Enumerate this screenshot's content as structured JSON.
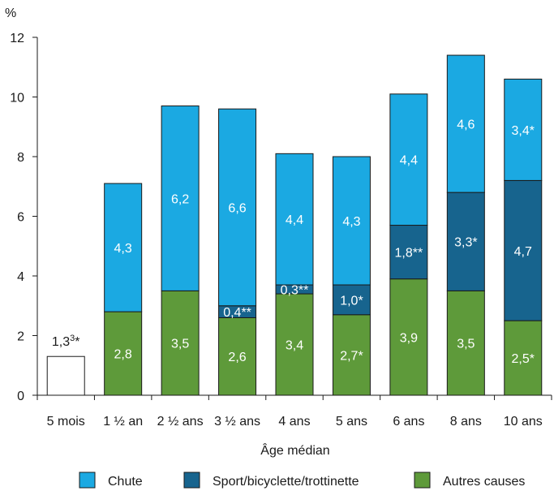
{
  "chart_data": {
    "type": "bar",
    "stacked": true,
    "ylabel": "%",
    "xlabel": "Âge médian",
    "ylim": [
      0,
      12
    ],
    "yticks": [
      0,
      2,
      4,
      6,
      8,
      10,
      12
    ],
    "categories": [
      "5 mois",
      "1 ½ an",
      "2 ½ ans",
      "3 ½ ans",
      "4 ans",
      "5 ans",
      "6 ans",
      "8 ans",
      "10 ans"
    ],
    "series": [
      {
        "name": "Autres causes",
        "color": "#5e9a3a",
        "values": [
          null,
          2.8,
          3.5,
          2.6,
          3.4,
          2.7,
          3.9,
          3.5,
          2.5
        ],
        "labels": [
          null,
          "2,8",
          "3,5",
          "2,6",
          "3,4",
          "2,7*",
          "3,9",
          "3,5",
          "2,5*"
        ]
      },
      {
        "name": "Sport/bicyclette/trottinette",
        "color": "#17648e",
        "values": [
          null,
          0,
          0,
          0.4,
          0.3,
          1.0,
          1.8,
          3.3,
          4.7
        ],
        "labels": [
          null,
          null,
          null,
          "0,4**",
          "0,3**",
          "1,0*",
          "1,8**",
          "3,3*",
          "4,7"
        ]
      },
      {
        "name": "Chute",
        "color": "#1ba9e2",
        "values": [
          null,
          4.3,
          6.2,
          6.6,
          4.4,
          4.3,
          4.4,
          4.6,
          3.4
        ],
        "labels": [
          null,
          "4,3",
          "6,2",
          "6,6",
          "4,4",
          "4,3",
          "4,4",
          "4,6",
          "3,4*"
        ]
      }
    ],
    "unsplit": {
      "category": "5 mois",
      "value": 1.3,
      "label_main": "1,3",
      "label_sup": "3",
      "label_star": "*",
      "color": "#ffffff"
    },
    "legend": {
      "position": "bottom",
      "items": [
        {
          "label": "Chute",
          "color": "#1ba9e2"
        },
        {
          "label": "Sport/bicyclette/trottinette",
          "color": "#17648e"
        },
        {
          "label": "Autres causes",
          "color": "#5e9a3a"
        }
      ]
    }
  }
}
